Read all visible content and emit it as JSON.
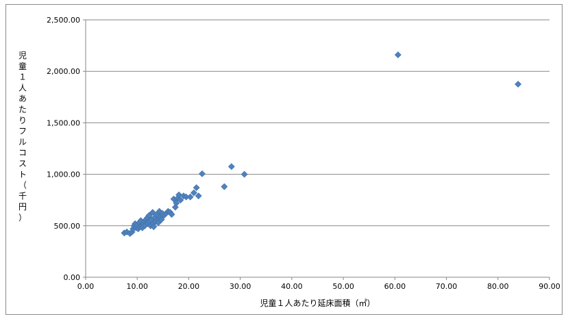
{
  "chart_data": {
    "type": "scatter",
    "title": "",
    "xlabel": "児童１人あたり延床面積（㎡）",
    "ylabel": "児童１人あたりフルコスト（千円）",
    "xlim": [
      0,
      90
    ],
    "ylim": [
      0,
      2500
    ],
    "x_ticks": [
      "0.00",
      "10.00",
      "20.00",
      "30.00",
      "40.00",
      "50.00",
      "60.00",
      "70.00",
      "80.00",
      "90.00"
    ],
    "y_ticks": [
      "0.00",
      "500.00",
      "1,000.00",
      "1,500.00",
      "2,000.00",
      "2,500.00"
    ],
    "grid": "horizontal",
    "legend": "none",
    "marker": "diamond",
    "marker_color": "#4f81bd",
    "points": [
      {
        "x": 7.5,
        "y": 430
      },
      {
        "x": 8.0,
        "y": 440
      },
      {
        "x": 8.6,
        "y": 425
      },
      {
        "x": 9.0,
        "y": 440
      },
      {
        "x": 9.2,
        "y": 470
      },
      {
        "x": 9.4,
        "y": 500
      },
      {
        "x": 9.6,
        "y": 520
      },
      {
        "x": 9.8,
        "y": 480
      },
      {
        "x": 10.0,
        "y": 500
      },
      {
        "x": 10.2,
        "y": 470
      },
      {
        "x": 10.4,
        "y": 530
      },
      {
        "x": 10.5,
        "y": 490
      },
      {
        "x": 10.7,
        "y": 550
      },
      {
        "x": 10.9,
        "y": 500
      },
      {
        "x": 11.0,
        "y": 480
      },
      {
        "x": 11.2,
        "y": 520
      },
      {
        "x": 11.4,
        "y": 540
      },
      {
        "x": 11.5,
        "y": 500
      },
      {
        "x": 11.7,
        "y": 560
      },
      {
        "x": 11.9,
        "y": 530
      },
      {
        "x": 12.0,
        "y": 580
      },
      {
        "x": 12.1,
        "y": 520
      },
      {
        "x": 12.3,
        "y": 600
      },
      {
        "x": 12.4,
        "y": 540
      },
      {
        "x": 12.6,
        "y": 500
      },
      {
        "x": 12.8,
        "y": 560
      },
      {
        "x": 13.0,
        "y": 630
      },
      {
        "x": 13.1,
        "y": 520
      },
      {
        "x": 13.2,
        "y": 490
      },
      {
        "x": 13.4,
        "y": 580
      },
      {
        "x": 13.6,
        "y": 540
      },
      {
        "x": 13.8,
        "y": 610
      },
      {
        "x": 14.0,
        "y": 560
      },
      {
        "x": 14.1,
        "y": 530
      },
      {
        "x": 14.3,
        "y": 640
      },
      {
        "x": 14.5,
        "y": 590
      },
      {
        "x": 14.7,
        "y": 560
      },
      {
        "x": 14.9,
        "y": 620
      },
      {
        "x": 15.2,
        "y": 600
      },
      {
        "x": 15.6,
        "y": 620
      },
      {
        "x": 16.0,
        "y": 640
      },
      {
        "x": 16.4,
        "y": 630
      },
      {
        "x": 16.7,
        "y": 610
      },
      {
        "x": 17.1,
        "y": 760
      },
      {
        "x": 17.4,
        "y": 680
      },
      {
        "x": 17.6,
        "y": 720
      },
      {
        "x": 17.9,
        "y": 770
      },
      {
        "x": 18.1,
        "y": 800
      },
      {
        "x": 18.4,
        "y": 750
      },
      {
        "x": 19.0,
        "y": 790
      },
      {
        "x": 19.5,
        "y": 780
      },
      {
        "x": 20.3,
        "y": 780
      },
      {
        "x": 21.0,
        "y": 820
      },
      {
        "x": 21.5,
        "y": 870
      },
      {
        "x": 21.9,
        "y": 790
      },
      {
        "x": 22.6,
        "y": 1005
      },
      {
        "x": 26.9,
        "y": 880
      },
      {
        "x": 28.3,
        "y": 1075
      },
      {
        "x": 30.8,
        "y": 1000
      },
      {
        "x": 60.6,
        "y": 2160
      },
      {
        "x": 83.9,
        "y": 1875
      }
    ]
  }
}
